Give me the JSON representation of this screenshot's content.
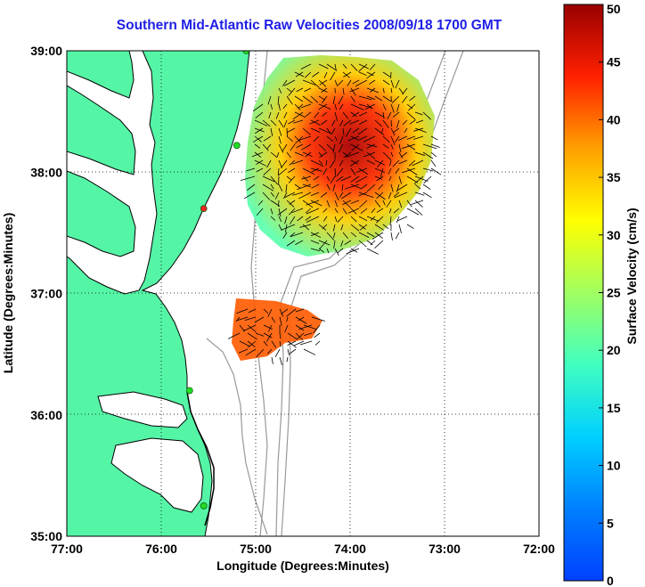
{
  "title": "Southern Mid-Atlantic Raw Velocities 2008/09/18 1700 GMT",
  "x_axis": {
    "label": "Longitude (Degrees:Minutes)",
    "ticks": [
      {
        "lon": -77,
        "label": "77:00"
      },
      {
        "lon": -76,
        "label": "76:00"
      },
      {
        "lon": -75,
        "label": "75:00"
      },
      {
        "lon": -74,
        "label": "74:00"
      },
      {
        "lon": -73,
        "label": "73:00"
      },
      {
        "lon": -72,
        "label": "72:00"
      }
    ],
    "range": [
      -77,
      -72
    ]
  },
  "y_axis": {
    "label": "Latitude (Degrees:Minutes)",
    "ticks": [
      {
        "lat": 39,
        "label": "39:00"
      },
      {
        "lat": 38,
        "label": "38:00"
      },
      {
        "lat": 37,
        "label": "37:00"
      },
      {
        "lat": 36,
        "label": "36:00"
      },
      {
        "lat": 35,
        "label": "35:00"
      }
    ],
    "range": [
      35,
      39
    ]
  },
  "colorbar": {
    "label": "Surface Velocity (cm/s)",
    "min": 0,
    "max": 50,
    "ticks": [
      "0",
      "5",
      "10",
      "15",
      "20",
      "25",
      "30",
      "35",
      "40",
      "45",
      "50"
    ]
  },
  "colors": {
    "land": "#55f5a6",
    "coast": "#000000",
    "bathymetry": "#999999",
    "grid": "#000000",
    "title": "#1e1ee6",
    "site_active": "#22dd22",
    "site_inactive": "#ee2222"
  },
  "stations": [
    {
      "lon": -75.1,
      "lat": 39.0,
      "status": "active"
    },
    {
      "lon": -75.2,
      "lat": 38.22,
      "status": "active"
    },
    {
      "lon": -75.55,
      "lat": 37.7,
      "status": "inactive"
    },
    {
      "lon": -75.7,
      "lat": 36.2,
      "status": "active"
    },
    {
      "lon": -75.55,
      "lat": 35.25,
      "status": "active"
    }
  ]
}
